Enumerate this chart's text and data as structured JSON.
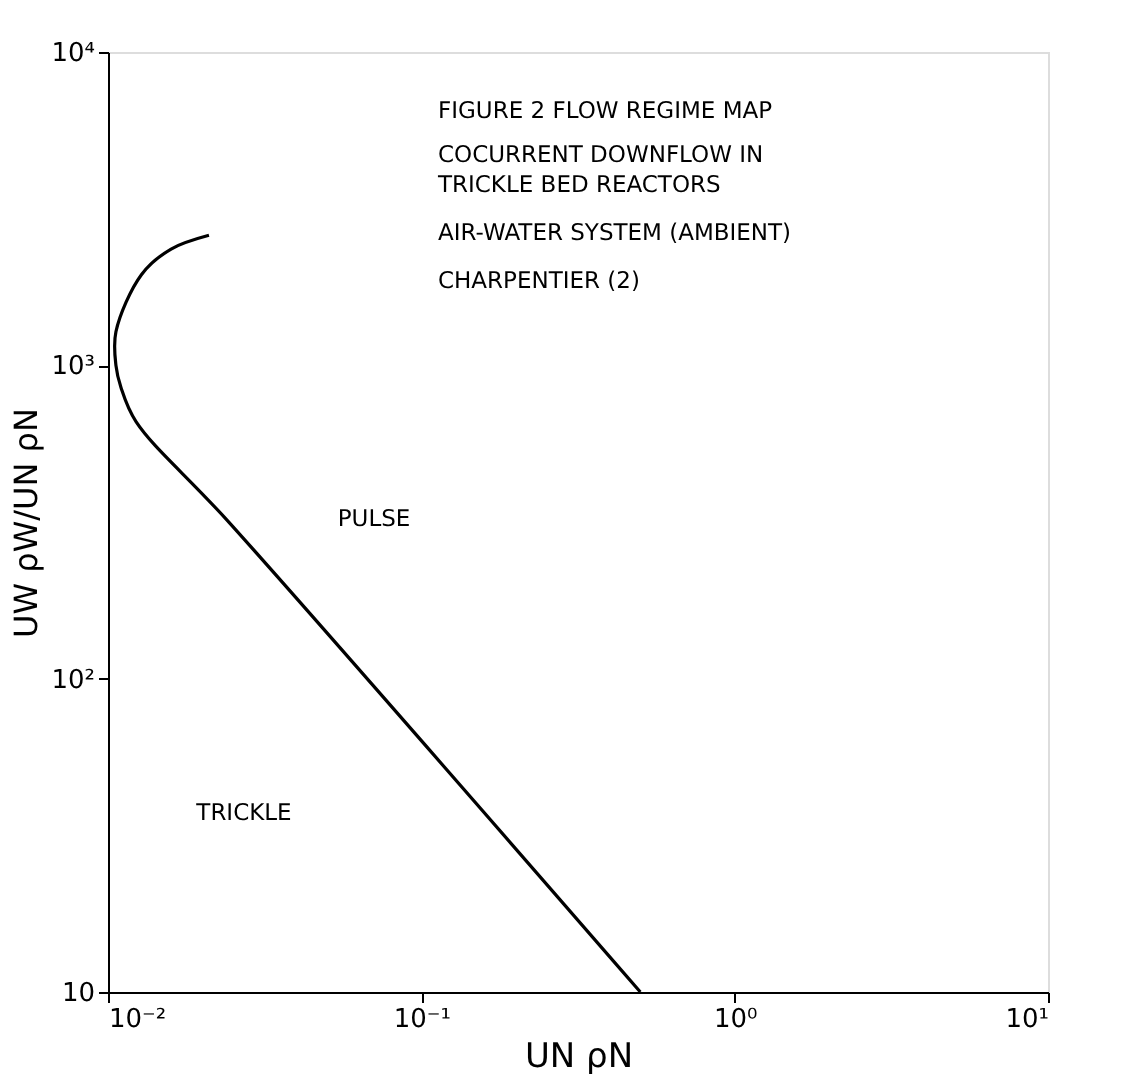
{
  "chart_data": {
    "type": "line",
    "xlabel": "UN ρN",
    "ylabel": "UW ρW/UN ρN",
    "annotations": [
      "FIGURE 2 FLOW REGIME MAP",
      "COCURRENT DOWNFLOW IN",
      "TRICKLE BED REACTORS",
      "AIR-WATER SYSTEM (AMBIENT)",
      "CHARPENTIER (2)",
      "PULSE",
      "TRICKLE"
    ],
    "log": "xy",
    "grid": false,
    "marker": "none",
    "line_style": "solid",
    "xlim": [
      0.01,
      10
    ],
    "ylim": [
      10,
      10000
    ],
    "xticks": [
      {
        "value": 0.01,
        "label": "10⁻²"
      },
      {
        "value": 0.1,
        "label": "10⁻¹"
      },
      {
        "value": 1,
        "label": "10⁰"
      },
      {
        "value": 10,
        "label": "10¹"
      }
    ],
    "yticks": [
      10,
      {
        "value": 100,
        "label": "10²"
      },
      {
        "value": 1000,
        "label": "10³"
      },
      {
        "value": 10000,
        "label": "10⁴"
      }
    ],
    "series": [
      {
        "color": "#000000",
        "x": [
          0.021,
          0.0159,
          0.0128,
          0.0106,
          0.0106,
          0.011,
          0.0123,
          0.0243,
          0.5
        ],
        "values": [
          2600,
          2350,
          1950,
          1280,
          1000,
          850,
          660,
          316,
          10
        ]
      }
    ]
  }
}
